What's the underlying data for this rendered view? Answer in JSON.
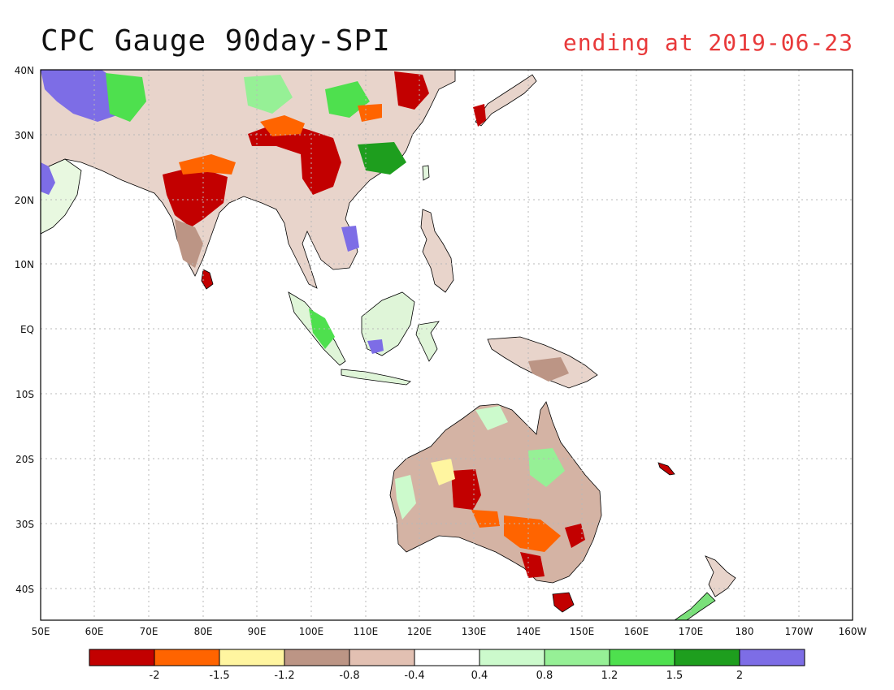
{
  "title": "CPC Gauge 90day-SPI",
  "date_label": "ending at 2019-06-23",
  "colors": {
    "title_date": "#e8393a",
    "ocean": "#ffffff",
    "coast": "#000000",
    "grid": "#b8b8b8"
  },
  "lon_ticks": [
    "50E",
    "60E",
    "70E",
    "80E",
    "90E",
    "100E",
    "110E",
    "120E",
    "130E",
    "140E",
    "150E",
    "160E",
    "170E",
    "180",
    "170W",
    "160W"
  ],
  "lat_ticks": [
    "40N",
    "30N",
    "20N",
    "10N",
    "EQ",
    "10S",
    "20S",
    "30S",
    "40S"
  ],
  "legend": {
    "colors": [
      "#c20000",
      "#ff6400",
      "#fff5a0",
      "#bc9585",
      "#e2c0b2",
      "#ffffff",
      "#ccfacc",
      "#96f096",
      "#4ee04e",
      "#1e9e1e",
      "#7d6de6"
    ],
    "labels": [
      "-2",
      "-1.5",
      "-1.2",
      "-0.8",
      "-0.4",
      "0.4",
      "0.8",
      "1.2",
      "1.5",
      "2"
    ]
  },
  "map_info": {
    "variable": "SPI",
    "period_days": 90,
    "end_date": "2019-06-23",
    "lon_range": [
      "50E",
      "160W"
    ],
    "lat_range": [
      "40N",
      "45S"
    ]
  }
}
